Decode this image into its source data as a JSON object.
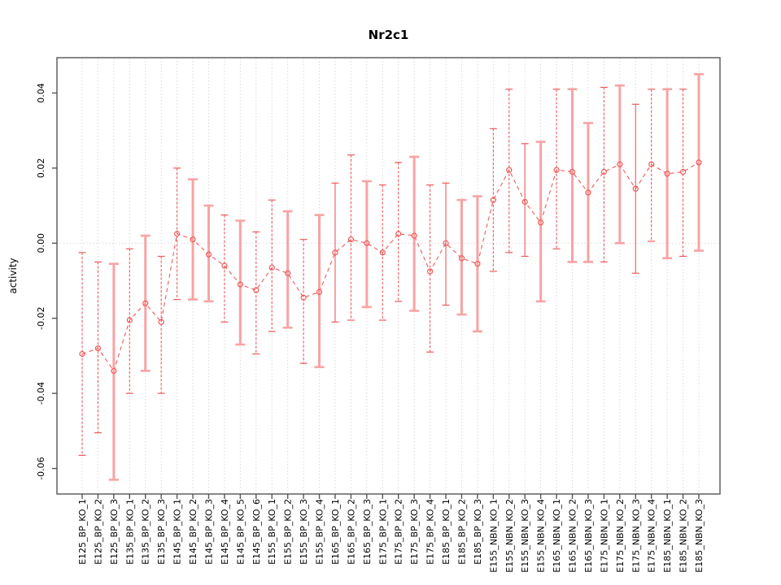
{
  "page": {
    "background": "#ffffff"
  },
  "chart_data": {
    "type": "scatter",
    "title": "Nr2c1",
    "xlabel": "",
    "ylabel": "activity",
    "legend": "none",
    "grid": "vertical-dotted-per-category-plus-zero-line",
    "marker": "open-circle",
    "line_style": "dashed",
    "yticks": [
      0.04,
      0.02,
      0.0,
      -0.02,
      -0.04,
      -0.06
    ],
    "ylim": [
      -0.0668,
      0.0494
    ],
    "zero_line": 0,
    "categories": [
      "E125_BP_KO_1",
      "E125_BP_KO_2",
      "E125_BP_KO_3",
      "E135_BP_KO_1",
      "E135_BP_KO_2",
      "E135_BP_KO_3",
      "E145_BP_KO_1",
      "E145_BP_KO_2",
      "E145_BP_KO_3",
      "E145_BP_KO_4",
      "E145_BP_KO_5",
      "E145_BP_KO_6",
      "E155_BP_KO_1",
      "E155_BP_KO_2",
      "E155_BP_KO_3",
      "E155_BP_KO_4",
      "E165_BP_KO_1",
      "E165_BP_KO_2",
      "E165_BP_KO_3",
      "E175_BP_KO_1",
      "E175_BP_KO_2",
      "E175_BP_KO_3",
      "E175_BP_KO_4",
      "E185_BP_KO_1",
      "E185_BP_KO_2",
      "E185_BP_KO_3",
      "E155_NBN_KO_1",
      "E155_NBN_KO_2",
      "E155_NBN_KO_3",
      "E155_NBN_KO_4",
      "E165_NBN_KO_1",
      "E165_NBN_KO_2",
      "E165_NBN_KO_3",
      "E175_NBN_KO_1",
      "E175_NBN_KO_2",
      "E175_NBN_KO_3",
      "E175_NBN_KO_4",
      "E185_NBN_KO_1",
      "E185_NBN_KO_2",
      "E185_NBN_KO_3"
    ],
    "series": [
      {
        "name": "activity",
        "values": [
          -0.0295,
          -0.028,
          -0.034,
          -0.0205,
          -0.016,
          -0.021,
          0.0025,
          0.001,
          -0.003,
          -0.006,
          -0.011,
          -0.0125,
          -0.0065,
          -0.008,
          -0.0145,
          -0.013,
          -0.0025,
          0.001,
          0.0,
          -0.0025,
          0.0025,
          0.002,
          -0.0075,
          0.0,
          -0.004,
          -0.0055,
          0.0115,
          0.0195,
          0.011,
          0.0055,
          0.0195,
          0.019,
          0.0135,
          0.019,
          0.021,
          0.0145,
          0.021,
          0.0185,
          0.019,
          0.0215
        ],
        "error_low": [
          -0.0565,
          -0.0505,
          -0.063,
          -0.04,
          -0.034,
          -0.04,
          -0.015,
          -0.015,
          -0.0155,
          -0.021,
          -0.027,
          -0.0295,
          -0.0235,
          -0.0225,
          -0.032,
          -0.033,
          -0.021,
          -0.0205,
          -0.017,
          -0.0205,
          -0.0155,
          -0.018,
          -0.029,
          -0.0165,
          -0.019,
          -0.0235,
          -0.0075,
          -0.0025,
          -0.0035,
          -0.0155,
          -0.0015,
          -0.005,
          -0.005,
          -0.005,
          0.0,
          -0.008,
          0.0005,
          -0.004,
          -0.0035,
          -0.002
        ],
        "error_high": [
          -0.0025,
          -0.005,
          -0.0055,
          -0.0015,
          0.002,
          -0.0035,
          0.02,
          0.017,
          0.01,
          0.0075,
          0.006,
          0.003,
          0.0115,
          0.0085,
          0.001,
          0.0075,
          0.016,
          0.0235,
          0.0165,
          0.0155,
          0.0215,
          0.023,
          0.0155,
          0.016,
          0.0115,
          0.0125,
          0.0305,
          0.041,
          0.0265,
          0.027,
          0.041,
          0.041,
          0.032,
          0.0415,
          0.042,
          0.037,
          0.041,
          0.041,
          0.041,
          0.045
        ],
        "bar_styles": [
          "dark",
          "dark",
          "light",
          "dark",
          "light",
          "dark",
          "dark",
          "light",
          "light",
          "dark",
          "light",
          "dark",
          "dark",
          "light",
          "dark",
          "light",
          "dark-solid",
          "dark",
          "light",
          "dark",
          "dark",
          "light",
          "dark",
          "dark-solid",
          "light",
          "light",
          "dark",
          "dark",
          "dark-solid",
          "light",
          "dark",
          "light",
          "light",
          "dark",
          "light",
          "dark-solid",
          "dark",
          "light",
          "dark",
          "light"
        ]
      }
    ],
    "colors": {
      "point": "#ef5a5a",
      "dark_bar": "#ef5a5a",
      "light_bar": "#f8a3a3",
      "series_line": "#ef5a5a",
      "grid": "#dadada",
      "zero_line": "#d9d9d9",
      "axis": "#555555",
      "text": "#000000"
    }
  }
}
